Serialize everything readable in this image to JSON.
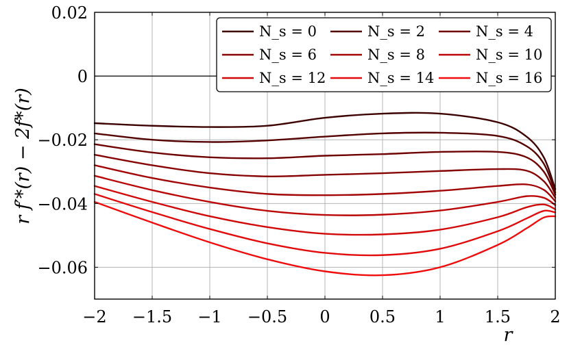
{
  "chart_data": {
    "type": "line",
    "title": "",
    "xlabel": "r",
    "ylabel": "r f′*(r) − 2f*(r)",
    "xlim": [
      -2,
      2
    ],
    "ylim": [
      -0.07,
      0.02
    ],
    "xticks": [
      -2,
      -1.5,
      -1,
      -0.5,
      0,
      0.5,
      1,
      1.5,
      2
    ],
    "xtick_labels": [
      "−2",
      "−1.5",
      "−1",
      "−0.5",
      "0",
      "0.5",
      "1",
      "1.5",
      "2"
    ],
    "yticks": [
      -0.06,
      -0.04,
      -0.02,
      0,
      0.02
    ],
    "ytick_labels": [
      "−0.06",
      "−0.04",
      "−0.02",
      "0",
      "0.02"
    ],
    "grid": true,
    "reference_line_y": 0,
    "legend": {
      "position": "top-right",
      "columns": 3
    },
    "x": [
      -2,
      -1.5,
      -1,
      -0.5,
      0,
      0.5,
      1,
      1.5,
      1.75,
      1.9,
      2
    ],
    "series": [
      {
        "name": "N_s = 0",
        "color": "#3c0000",
        "values": [
          -0.0148,
          -0.0156,
          -0.016,
          -0.0156,
          -0.0131,
          -0.0118,
          -0.0118,
          -0.0145,
          -0.019,
          -0.0255,
          -0.0355
        ]
      },
      {
        "name": "N_s = 2",
        "color": "#550000",
        "values": [
          -0.018,
          -0.02,
          -0.0207,
          -0.0202,
          -0.019,
          -0.018,
          -0.0178,
          -0.0188,
          -0.022,
          -0.0275,
          -0.0365
        ]
      },
      {
        "name": "N_s = 4",
        "color": "#6e0000",
        "values": [
          -0.0214,
          -0.024,
          -0.0255,
          -0.0258,
          -0.025,
          -0.0245,
          -0.0238,
          -0.0238,
          -0.0255,
          -0.03,
          -0.0372
        ]
      },
      {
        "name": "N_s = 6",
        "color": "#870303",
        "values": [
          -0.0247,
          -0.028,
          -0.0305,
          -0.0315,
          -0.031,
          -0.0305,
          -0.0298,
          -0.0292,
          -0.0297,
          -0.033,
          -0.0382
        ]
      },
      {
        "name": "N_s = 8",
        "color": "#a20505",
        "values": [
          -0.028,
          -0.032,
          -0.035,
          -0.037,
          -0.0374,
          -0.037,
          -0.036,
          -0.0345,
          -0.034,
          -0.0357,
          -0.0393
        ]
      },
      {
        "name": "N_s = 10",
        "color": "#ba0606",
        "values": [
          -0.0313,
          -0.0358,
          -0.0395,
          -0.0423,
          -0.0436,
          -0.0435,
          -0.0422,
          -0.0395,
          -0.0377,
          -0.0382,
          -0.0405
        ]
      },
      {
        "name": "N_s = 12",
        "color": "#d10808",
        "values": [
          -0.0345,
          -0.0395,
          -0.044,
          -0.0474,
          -0.0495,
          -0.0497,
          -0.0482,
          -0.0443,
          -0.0412,
          -0.0403,
          -0.0418
        ]
      },
      {
        "name": "N_s = 14",
        "color": "#e20a0a",
        "values": [
          -0.037,
          -0.0427,
          -0.048,
          -0.0525,
          -0.0555,
          -0.0562,
          -0.0542,
          -0.0487,
          -0.0447,
          -0.0423,
          -0.0428
        ]
      },
      {
        "name": "N_s = 16",
        "color": "#f00c0c",
        "values": [
          -0.0395,
          -0.046,
          -0.0522,
          -0.0575,
          -0.0613,
          -0.0625,
          -0.06,
          -0.053,
          -0.0478,
          -0.0444,
          -0.044
        ]
      }
    ]
  }
}
